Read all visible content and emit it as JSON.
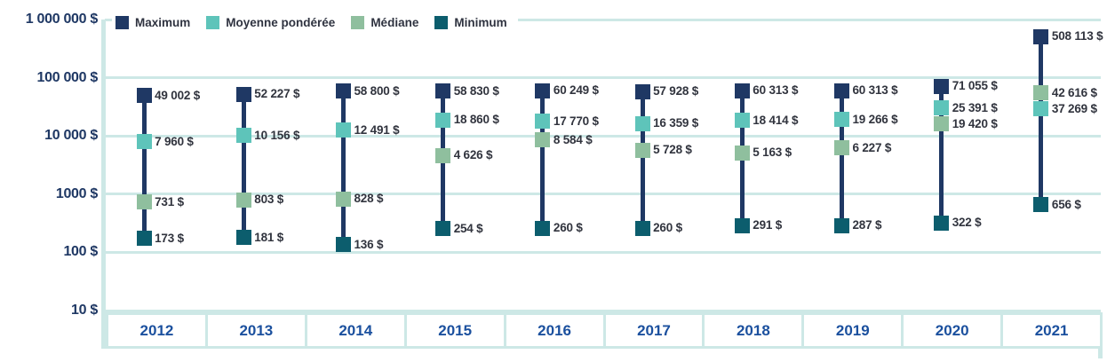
{
  "colors": {
    "navy": "#1f3864",
    "teal": "#5ec4ba",
    "sage": "#8fbf9e",
    "dark_teal": "#0c5d6d",
    "gridline": "#cde8e6",
    "year_text": "#1b509e",
    "axis_text": "#1f3864",
    "value_text": "#31343e"
  },
  "legend": {
    "items": [
      {
        "label": "Maximum",
        "color": "#1f3864",
        "slug": "maximum"
      },
      {
        "label": "Moyenne pondérée",
        "color": "#5ec4ba",
        "slug": "moyenne-ponderee"
      },
      {
        "label": "Médiane",
        "color": "#8fbf9e",
        "slug": "mediane"
      },
      {
        "label": "Minimum",
        "color": "#0c5d6d",
        "slug": "minimum"
      }
    ]
  },
  "y_axis": {
    "tick_labels": [
      "1 000 000 $",
      "100 000 $",
      "10 000 $",
      "1000 $",
      "100 $",
      "10 $"
    ],
    "tick_values": [
      1000000,
      100000,
      10000,
      1000,
      100,
      10
    ]
  },
  "x_axis": {
    "years": [
      "2012",
      "2013",
      "2014",
      "2015",
      "2016",
      "2017",
      "2018",
      "2019",
      "2020",
      "2021"
    ]
  },
  "chart_data": {
    "type": "scatter",
    "log_scale": true,
    "ylim": [
      10,
      1000000
    ],
    "grid": true,
    "legend_position": "top-left",
    "categories": [
      2012,
      2013,
      2014,
      2015,
      2016,
      2017,
      2018,
      2019,
      2020,
      2021
    ],
    "series": [
      {
        "name": "Maximum",
        "slug": "maximum",
        "color": "#1f3864",
        "values": [
          49002,
          52227,
          58800,
          58830,
          60249,
          57928,
          60313,
          60313,
          71055,
          508113
        ],
        "labels": [
          "49 002 $",
          "52 227 $",
          "58 800 $",
          "58 830 $",
          "60 249 $",
          "57 928 $",
          "60 313 $",
          "60 313 $",
          "71 055 $",
          "508 113 $"
        ]
      },
      {
        "name": "Moyenne pondérée",
        "slug": "moyenne-ponderee",
        "color": "#5ec4ba",
        "values": [
          7960,
          10156,
          12491,
          18860,
          17770,
          16359,
          18414,
          19266,
          25391,
          37269
        ],
        "labels": [
          "7 960 $",
          "10 156 $",
          "12 491 $",
          "18 860 $",
          "17 770 $",
          "16 359 $",
          "18 414 $",
          "19 266 $",
          "25 391 $",
          "37 269 $"
        ]
      },
      {
        "name": "Médiane",
        "slug": "mediane",
        "color": "#8fbf9e",
        "values": [
          731,
          803,
          828,
          4626,
          8584,
          5728,
          5163,
          6227,
          19420,
          42616
        ],
        "labels": [
          "731 $",
          "803 $",
          "828 $",
          "4 626 $",
          "8 584 $",
          "5 728 $",
          "5 163 $",
          "6 227 $",
          "19 420 $",
          "42 616 $"
        ]
      },
      {
        "name": "Minimum",
        "slug": "minimum",
        "color": "#0c5d6d",
        "values": [
          173,
          181,
          136,
          254,
          260,
          260,
          291,
          287,
          322,
          656
        ],
        "labels": [
          "173 $",
          "181 $",
          "136 $",
          "254 $",
          "260 $",
          "260 $",
          "291 $",
          "287 $",
          "322 $",
          "656 $"
        ]
      }
    ]
  }
}
